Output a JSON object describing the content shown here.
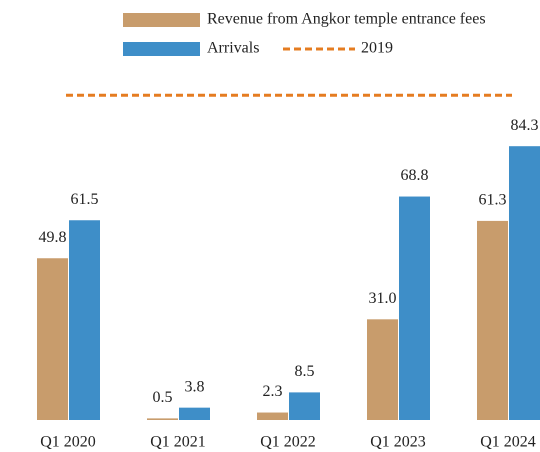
{
  "chart_data": {
    "type": "bar",
    "categories": [
      "Q1 2020",
      "Q1 2021",
      "Q1 2022",
      "Q1 2023",
      "Q1 2024"
    ],
    "series": [
      {
        "name": "Revenue from Angkor temple entrance fees",
        "color": "#c89c6c",
        "values": [
          49.8,
          0.5,
          2.3,
          31.0,
          61.3
        ],
        "value_labels": [
          "49.8",
          "0.5",
          "2.3",
          "31.0",
          "61.3"
        ]
      },
      {
        "name": "Arrivals",
        "color": "#3e8ec8",
        "values": [
          61.5,
          3.8,
          8.5,
          68.8,
          84.3
        ],
        "value_labels": [
          "61.5",
          "3.8",
          "8.5",
          "68.8",
          "84.3"
        ]
      }
    ],
    "reference_lines": [
      {
        "name": "2019",
        "value": 100,
        "color": "#e57c21"
      }
    ],
    "ylim": [
      0,
      125
    ]
  }
}
